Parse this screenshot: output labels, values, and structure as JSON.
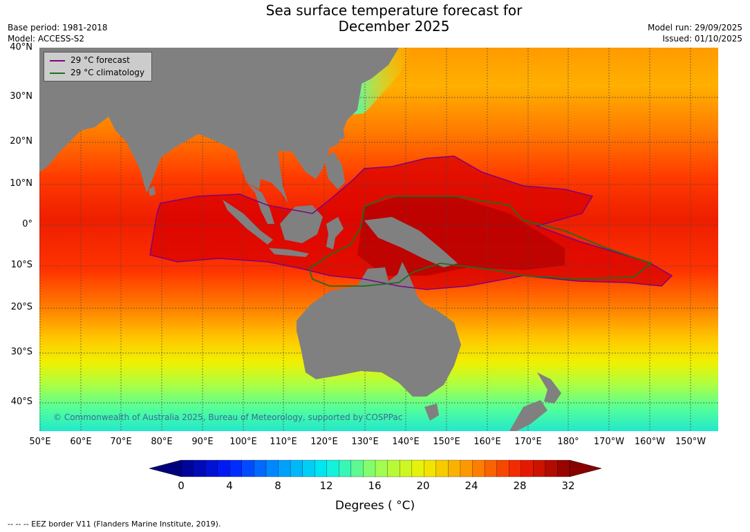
{
  "title_line1": "Sea surface temperature forecast for",
  "title_line2": "December 2025",
  "base_period": "Base period: 1981-2018",
  "model": "Model: ACCESS-S2",
  "model_run": "Model run: 29/09/2025",
  "issued": "Issued: 01/10/2025",
  "lat_labels": [
    "40°N",
    "30°N",
    "20°N",
    "10°N",
    "0°",
    "10°S",
    "20°S",
    "30°S",
    "40°S"
  ],
  "lon_labels": [
    "50°E",
    "60°E",
    "70°E",
    "80°E",
    "90°E",
    "100°E",
    "110°E",
    "120°E",
    "130°E",
    "140°E",
    "150°E",
    "160°E",
    "170°E",
    "180°",
    "170°W",
    "160°W",
    "150°W"
  ],
  "legend": {
    "forecast_label": "29 °C  forecast",
    "climatology_label": "29 °C  climatology",
    "forecast_color": "#800080",
    "climatology_color": "#1e6e1e"
  },
  "copyright": "© Commonwealth of Australia 2025, Bureau of Meteorology, supported by COSPPac",
  "colorbar": {
    "ticks": [
      "0",
      "4",
      "8",
      "12",
      "16",
      "20",
      "24",
      "28",
      "32"
    ],
    "min": 0,
    "max": 32,
    "step": 1,
    "label": "Degrees ( °C)"
  },
  "footnote": "--  --  -- EEZ border V11 (Flanders Marine Institute, 2019).",
  "colors": {
    "land": "#808080",
    "grid": "#444444"
  }
}
